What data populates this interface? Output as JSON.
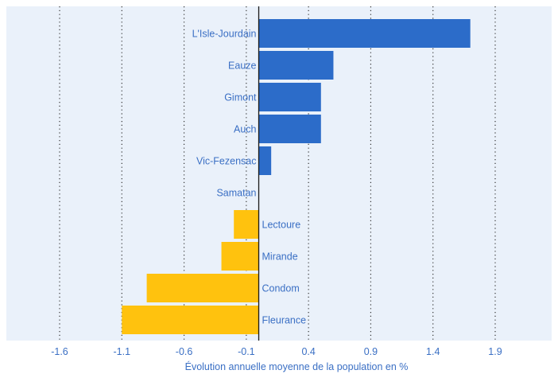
{
  "chart_data": {
    "type": "bar",
    "orientation": "horizontal",
    "xlabel": "Évolution annuelle moyenne de la population en %",
    "xlim": [
      -1.85,
      2.15
    ],
    "xticks": [
      -1.6,
      -1.1,
      -0.6,
      -0.1,
      0.4,
      0.9,
      1.4,
      1.9
    ],
    "xtick_labels": [
      "-1.6",
      "-1.1",
      "-0.6",
      "-0.1",
      "0.4",
      "0.9",
      "1.4",
      "1.9"
    ],
    "grid": "vertical dotted",
    "categories": [
      "L'Isle-Jourdain",
      "Eauze",
      "Gimont",
      "Auch",
      "Vic-Fezensac",
      "Samatan",
      "Lectoure",
      "Mirande",
      "Condom",
      "Fleurance"
    ],
    "values": [
      1.7,
      0.6,
      0.5,
      0.5,
      0.1,
      0.0,
      -0.2,
      -0.3,
      -0.9,
      -1.1
    ],
    "colors": {
      "positive": "#2c6cc9",
      "negative": "#ffc20e",
      "label": "#3a6fc4",
      "axis": "#1a1a1a",
      "background": "#eaf1fa"
    }
  }
}
